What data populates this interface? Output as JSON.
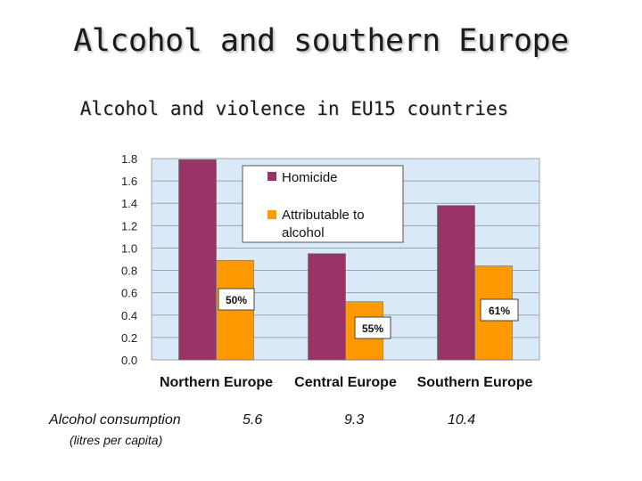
{
  "slide": {
    "title": "Alcohol and southern Europe",
    "subtitle": "Alcohol and violence in EU15 countries"
  },
  "colors": {
    "homicide": "#993366",
    "attributable": "#ff9900",
    "plot_background": "#d9e9f7",
    "gridline": "#9aa4b0"
  },
  "chart_data": {
    "type": "bar",
    "title": "Alcohol and violence in EU15 countries",
    "categories": [
      "Northern Europe",
      "Central Europe",
      "Southern Europe"
    ],
    "series": [
      {
        "name": "Homicide",
        "values": [
          1.79,
          0.95,
          1.38
        ]
      },
      {
        "name": "Attributable to alcohol",
        "values": [
          0.89,
          0.52,
          0.84
        ]
      }
    ],
    "ylim": [
      0,
      1.8
    ],
    "yticks": [
      "0.0",
      "0.2",
      "0.4",
      "0.6",
      "0.8",
      "1.0",
      "1.2",
      "1.4",
      "1.6",
      "1.8"
    ],
    "xlabel": "",
    "ylabel": "",
    "grid": true,
    "legend_position": "top-center",
    "annotations": [
      "50%",
      "55%",
      "61%"
    ]
  },
  "consumption": {
    "label": "Alcohol consumption",
    "unit": "(litres per capita)",
    "values": [
      "5.6",
      "9.3",
      "10.4"
    ]
  }
}
